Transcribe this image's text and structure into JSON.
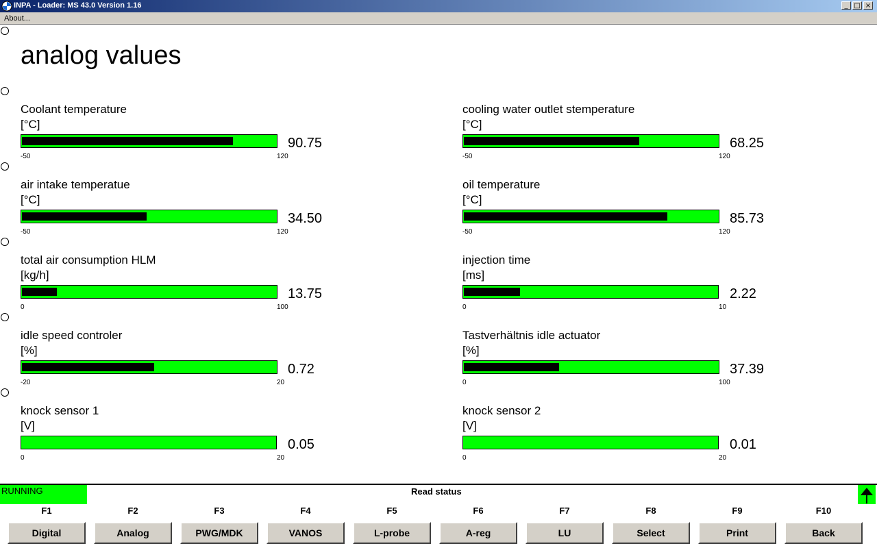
{
  "window": {
    "title": "INPA - Loader:  MS 43.0 Version 1.16"
  },
  "menu": {
    "about": "About..."
  },
  "page": {
    "title": "analog values"
  },
  "colors": {
    "bar": "#00ff00",
    "fill": "#000000",
    "status": "#00ff00"
  },
  "gauges": {
    "coolant": {
      "label": "Coolant temperature",
      "unit": "[°C]",
      "value": "90.75",
      "min": "-50",
      "max": "120",
      "fill_fraction": 0.83
    },
    "outlet": {
      "label": "cooling water outlet stemperature",
      "unit": "[°C]",
      "value": "68.25",
      "min": "-50",
      "max": "120",
      "fill_fraction": 0.69
    },
    "intake": {
      "label": "air intake temperatue",
      "unit": "[°C]",
      "value": "34.50",
      "min": "-50",
      "max": "120",
      "fill_fraction": 0.49
    },
    "oil": {
      "label": "oil temperature",
      "unit": "[°C]",
      "value": "85.73",
      "min": "-50",
      "max": "120",
      "fill_fraction": 0.8
    },
    "air": {
      "label": "total air consumption HLM",
      "unit": "[kg/h]",
      "value": "13.75",
      "min": "0",
      "max": "100",
      "fill_fraction": 0.1375
    },
    "injection": {
      "label": "injection time",
      "unit": "[ms]",
      "value": "2.22",
      "min": "0",
      "max": "10",
      "fill_fraction": 0.222
    },
    "idle": {
      "label": "idle speed controler",
      "unit": "[%]",
      "value": "0.72",
      "min": "-20",
      "max": "20",
      "fill_fraction": 0.52
    },
    "actuator": {
      "label": "Tastverhältnis idle actuator",
      "unit": "[%]",
      "value": "37.39",
      "min": "0",
      "max": "100",
      "fill_fraction": 0.3739
    },
    "knock1": {
      "label": "knock sensor 1",
      "unit": "[V]",
      "value": "0.05",
      "min": "0",
      "max": "20",
      "fill_fraction": 0
    },
    "knock2": {
      "label": "knock sensor 2",
      "unit": "[V]",
      "value": "0.01",
      "min": "0",
      "max": "20",
      "fill_fraction": 0
    }
  },
  "statusbar": {
    "status": "RUNNING",
    "read_status": "Read status"
  },
  "fkeys": [
    {
      "key": "F1",
      "label": "Digital"
    },
    {
      "key": "F2",
      "label": "Analog"
    },
    {
      "key": "F3",
      "label": "PWG/MDK"
    },
    {
      "key": "F4",
      "label": "VANOS"
    },
    {
      "key": "F5",
      "label": "L-probe"
    },
    {
      "key": "F6",
      "label": "A-reg"
    },
    {
      "key": "F7",
      "label": "LU"
    },
    {
      "key": "F8",
      "label": "Select"
    },
    {
      "key": "F9",
      "label": "Print"
    },
    {
      "key": "F10",
      "label": "Back"
    }
  ]
}
